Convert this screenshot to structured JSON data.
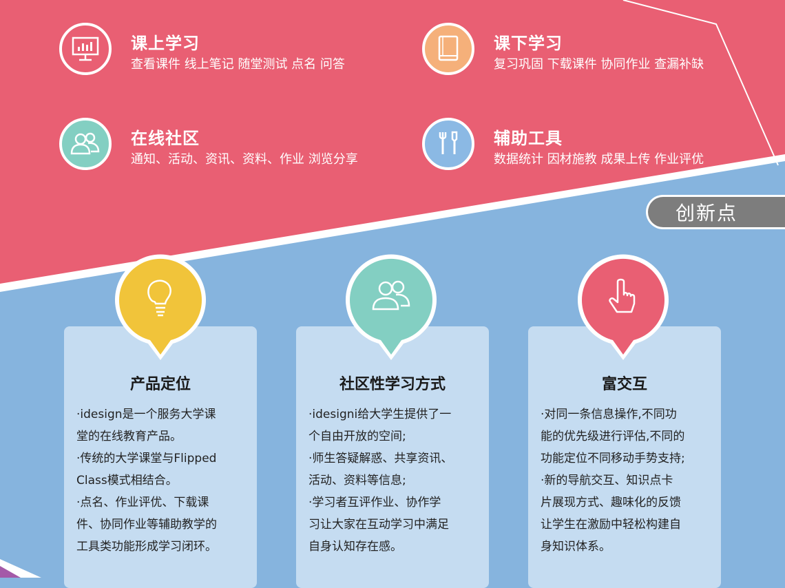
{
  "colors": {
    "pink": "#e95f73",
    "blue": "#86b4de",
    "card": "#c5dcf1",
    "badge": "#7d7d7d",
    "yellow": "#f1c43a",
    "teal": "#83cfc2",
    "orange": "#f5b07a",
    "sky": "#8bb9e4"
  },
  "features": [
    {
      "title": "课上学习",
      "desc": "查看课件 线上笔记 随堂测试 点名 问答",
      "icon": "presentation-icon"
    },
    {
      "title": "课下学习",
      "desc": "复习巩固 下载课件 协同作业 查漏补缺",
      "icon": "book-icon"
    },
    {
      "title": "在线社区",
      "desc": "通知、活动、资讯、资料、作业 浏览分享",
      "icon": "users-icon"
    },
    {
      "title": "辅助工具",
      "desc": "数据统计 因材施教 成果上传 作业评优",
      "icon": "tools-icon"
    }
  ],
  "badge": {
    "label": "创新点"
  },
  "cards": [
    {
      "title": "产品定位",
      "icon": "lightbulb-icon",
      "lines": [
        "·idesign是一个服务大学课",
        "堂的在线教育产品。",
        "·传统的大学课堂与Flipped",
        "Class模式相结合。",
        "·点名、作业评优、下载课",
        "件、协同作业等辅助教学的",
        "工具类功能形成学习闭环。"
      ]
    },
    {
      "title": "社区性学习方式",
      "icon": "users-icon",
      "lines": [
        "·idesigni给大学生提供了一",
        "个自由开放的空间;",
        "·师生答疑解惑、共享资讯、",
        "活动、资料等信息;",
        "·学习者互评作业、协作学",
        "习让大家在互动学习中满足",
        "自身认知存在感。"
      ]
    },
    {
      "title": "富交互",
      "icon": "hand-pointer-icon",
      "lines": [
        "·对同一条信息操作,不同功",
        "能的优先级进行评估,不同的",
        "功能定位不同移动手势支持;",
        "·新的导航交互、知识点卡",
        "片展现方式、趣味化的反馈",
        "让学生在激励中轻松构建自",
        "身知识体系。"
      ]
    }
  ]
}
